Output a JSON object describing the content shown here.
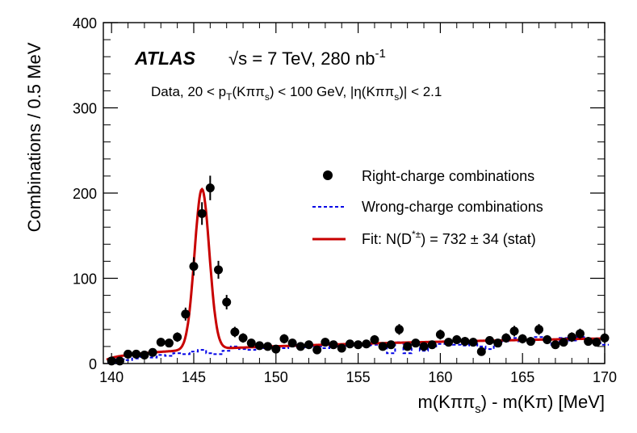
{
  "chart_data": {
    "type": "scatter",
    "title": "",
    "xlabel": {
      "main": "m(Kππ",
      "sub": "s",
      "rest": ") - m(Kπ)  [MeV]"
    },
    "ylabel": "Combinations / 0.5 MeV",
    "xlim": [
      139.5,
      170
    ],
    "ylim": [
      0,
      400
    ],
    "x_ticks": [
      140,
      145,
      150,
      155,
      160,
      165,
      170
    ],
    "y_ticks": [
      0,
      100,
      200,
      300,
      400
    ],
    "grid": false,
    "legend_position": "right",
    "annotations": {
      "experiment": "ATLAS",
      "energy": {
        "sqrt": "√s",
        "main": " = 7 TeV, 280 nb",
        "sup": "-1"
      },
      "selection": {
        "p1": "Data, 20 < p",
        "sub1": "T",
        "p2": "(Kππ",
        "sub2": "s",
        "p3": ") < 100 GeV, |η(Kππ",
        "sub3": "s",
        "p4": ")| < 2.1"
      }
    },
    "legend": {
      "right_charge": "Right-charge combinations",
      "wrong_charge": "Wrong-charge combinations",
      "fit": {
        "p1": "Fit: N(D",
        "sup": "*±",
        "p2": ") = 732 ± 34 (stat)"
      }
    },
    "series": [
      {
        "name": "Right-charge combinations",
        "kind": "points",
        "x": [
          140.0,
          140.5,
          141.0,
          141.5,
          142.0,
          142.5,
          143.0,
          143.5,
          144.0,
          144.5,
          145.0,
          145.5,
          146.0,
          146.5,
          147.0,
          147.5,
          148.0,
          148.5,
          149.0,
          149.5,
          150.0,
          150.5,
          151.0,
          151.5,
          152.0,
          152.5,
          153.0,
          153.5,
          154.0,
          154.5,
          155.0,
          155.5,
          156.0,
          156.5,
          157.0,
          157.5,
          158.0,
          158.5,
          159.0,
          159.5,
          160.0,
          160.5,
          161.0,
          161.5,
          162.0,
          162.5,
          163.0,
          163.5,
          164.0,
          164.5,
          165.0,
          165.5,
          166.0,
          166.5,
          167.0,
          167.5,
          168.0,
          168.5,
          169.0,
          169.5,
          170.0
        ],
        "y": [
          3,
          3,
          11,
          11,
          10,
          13,
          25,
          24,
          31,
          58,
          114,
          176,
          206,
          110,
          72,
          37,
          30,
          24,
          21,
          20,
          17,
          29,
          24,
          20,
          22,
          16,
          25,
          22,
          18,
          23,
          22,
          23,
          28,
          20,
          22,
          40,
          20,
          24,
          20,
          22,
          34,
          25,
          28,
          26,
          25,
          14,
          27,
          24,
          30,
          38,
          29,
          26,
          40,
          28,
          22,
          25,
          31,
          35,
          26,
          25,
          30
        ],
        "errors": [
          2,
          2,
          3.5,
          3.5,
          3.3,
          3.7,
          5,
          5,
          5.6,
          7.6,
          10.7,
          13.3,
          14.4,
          10.5,
          8.5,
          6.1,
          5.5,
          5,
          4.6,
          4.5,
          4.1,
          5.4,
          5,
          4.5,
          4.7,
          4,
          5,
          4.7,
          4.2,
          4.8,
          4.7,
          4.8,
          5.3,
          4.5,
          4.7,
          6.3,
          4.5,
          4.9,
          4.5,
          4.7,
          5.8,
          5,
          5.3,
          5.1,
          5,
          3.7,
          5.2,
          4.9,
          5.5,
          6.2,
          5.4,
          5.1,
          6.3,
          5.3,
          4.7,
          5,
          5.6,
          5.9,
          5.1,
          5,
          5.5
        ]
      },
      {
        "name": "Wrong-charge combinations",
        "kind": "step",
        "x": [
          140.0,
          140.5,
          141.0,
          141.5,
          142.0,
          142.5,
          143.0,
          143.5,
          144.0,
          144.5,
          145.0,
          145.5,
          146.0,
          146.5,
          147.0,
          147.5,
          148.0,
          148.5,
          149.0,
          149.5,
          150.0,
          150.5,
          151.0,
          151.5,
          152.0,
          152.5,
          153.0,
          153.5,
          154.0,
          154.5,
          155.0,
          155.5,
          156.0,
          156.5,
          157.0,
          157.5,
          158.0,
          158.5,
          159.0,
          159.5,
          160.0,
          160.5,
          161.0,
          161.5,
          162.0,
          162.5,
          163.0,
          163.5,
          164.0,
          164.5,
          165.0,
          165.5,
          166.0,
          166.5,
          167.0,
          167.5,
          168.0,
          168.5,
          169.0,
          169.5,
          170.0
        ],
        "y": [
          1,
          5,
          4,
          6,
          8,
          7,
          10,
          9,
          12,
          11,
          14,
          16,
          12,
          11,
          15,
          20,
          17,
          16,
          18,
          19,
          20,
          18,
          22,
          19,
          21,
          20,
          18,
          22,
          20,
          21,
          23,
          21,
          22,
          24,
          12,
          25,
          12,
          22,
          15,
          20,
          23,
          24,
          22,
          21,
          24,
          20,
          17,
          28,
          26,
          30,
          26,
          27,
          31,
          28,
          22,
          30,
          27,
          31,
          29,
          24,
          22
        ]
      },
      {
        "name": "Fit",
        "kind": "curve",
        "model": {
          "peak_mean": 145.5,
          "peak_sigma": 0.45,
          "peak_amp": 188,
          "bkg_norm": 8.9,
          "bkg_threshold": 139.57,
          "bkg_power": 0.35
        }
      }
    ],
    "colors": {
      "points": "#000000",
      "wrong_charge": "#0000e6",
      "fit": "#c80000"
    }
  }
}
